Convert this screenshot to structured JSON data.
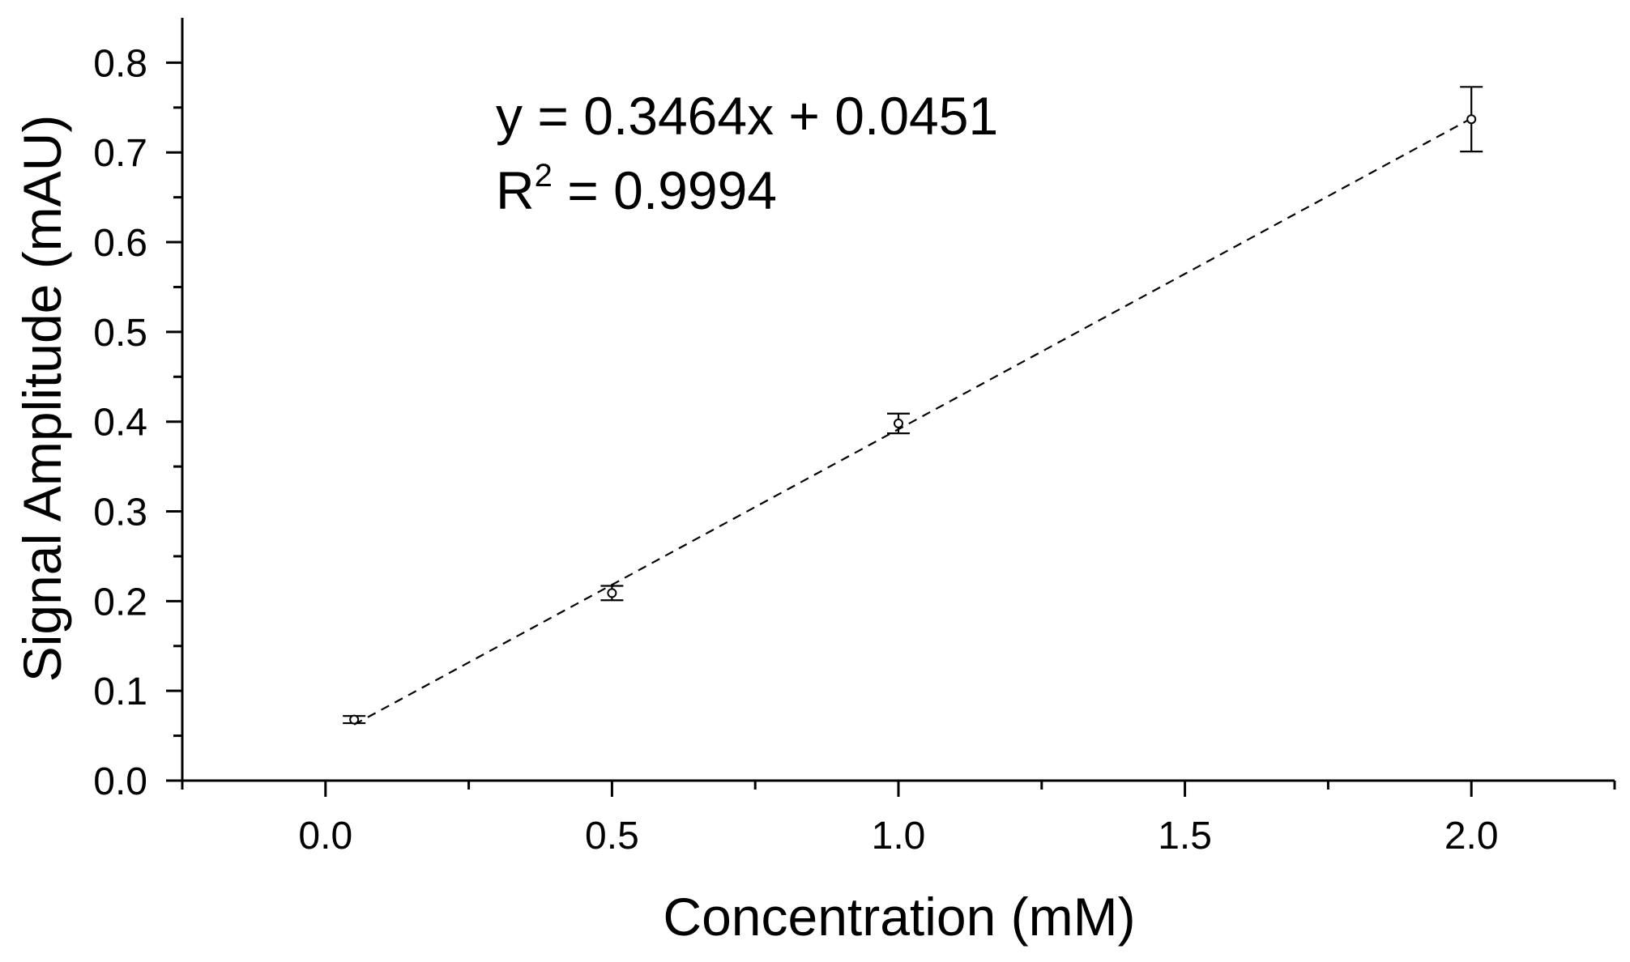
{
  "chart_data": {
    "type": "scatter",
    "title": "",
    "xlabel": "Concentration (mM)",
    "ylabel": "Signal Amplitude (mAU)",
    "xlim": [
      -0.25,
      2.25
    ],
    "ylim": [
      0.0,
      0.85
    ],
    "x_ticks": [
      0.0,
      0.5,
      1.0,
      1.5,
      2.0
    ],
    "x_tick_labels": [
      "0.0",
      "0.5",
      "1.0",
      "1.5",
      "2.0"
    ],
    "x_minor_ticks": [
      -0.25,
      0.25,
      0.75,
      1.25,
      1.75,
      2.25
    ],
    "y_ticks": [
      0.0,
      0.1,
      0.2,
      0.3,
      0.4,
      0.5,
      0.6,
      0.7,
      0.8
    ],
    "y_tick_labels": [
      "0.0",
      "0.1",
      "0.2",
      "0.3",
      "0.4",
      "0.5",
      "0.6",
      "0.7",
      "0.8"
    ],
    "y_minor_ticks": [
      0.05,
      0.15,
      0.25,
      0.35,
      0.45,
      0.55,
      0.65,
      0.75
    ],
    "grid": false,
    "series": [
      {
        "x": [
          0.05,
          0.5,
          1.0,
          2.0
        ],
        "y": [
          0.068,
          0.209,
          0.398,
          0.737
        ],
        "error": [
          0.004,
          0.008,
          0.011,
          0.036
        ],
        "marker": "circle-open",
        "color": "#000000"
      }
    ],
    "fit": {
      "type": "linear",
      "slope": 0.3464,
      "intercept": 0.0451,
      "x_range": [
        0.05,
        2.0
      ],
      "style": "dashed",
      "color": "#000000"
    },
    "annotations": {
      "equation": "y = 0.3464x + 0.0451",
      "r2_prefix": "R",
      "r2_superscript": "2",
      "r2_suffix": " = 0.9994"
    }
  }
}
